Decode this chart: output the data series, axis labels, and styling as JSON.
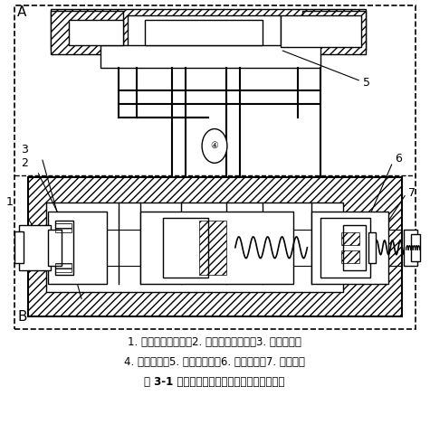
{
  "title": "",
  "caption_line1": "1. 配流阀换向阀芯，2. 配流阀换向阀体，3. 冲击器机体",
  "caption_line2": "4. 冲击活塞，5. 高压蓄能器，6. 先导阀体，7. 先导阀芯",
  "caption_line3": "图 3-1 压力反馈式液压冲击器基本原理结构图",
  "label_A": "A",
  "label_B": "B",
  "labels": [
    "1",
    "2",
    "3",
    "4",
    "5",
    "6",
    "7"
  ],
  "bg_color": "#ffffff",
  "hatch_color": "#000000",
  "line_color": "#000000",
  "figsize": [
    4.75,
    4.69
  ],
  "dpi": 100
}
